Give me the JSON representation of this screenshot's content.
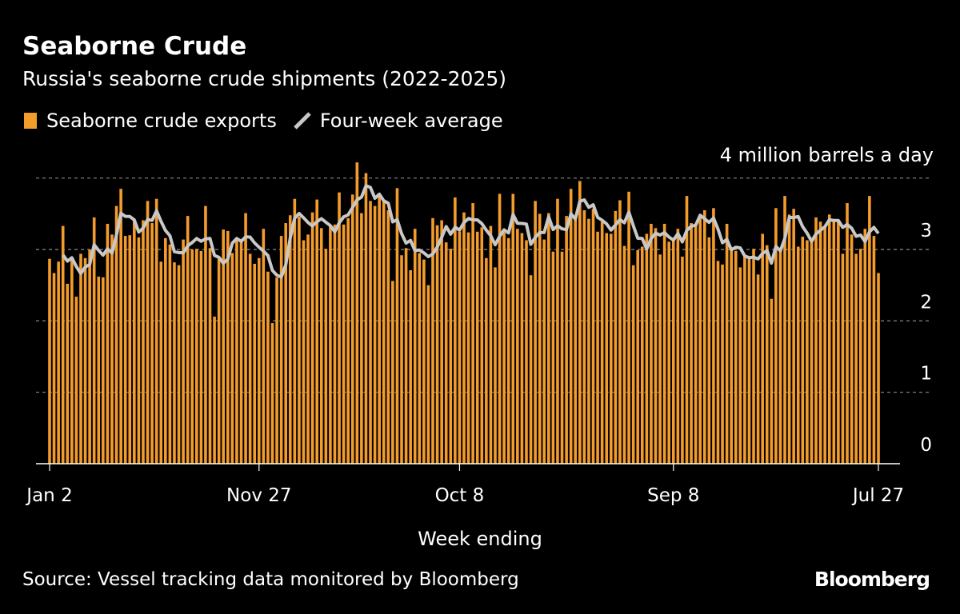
{
  "title": "Seaborne Crude",
  "subtitle": "Russia's seaborne crude shipments (2022-2025)",
  "legend": {
    "bars": "Seaborne crude exports",
    "line": "Four-week average"
  },
  "source": "Source: Vessel tracking data monitored by Bloomberg",
  "logo": "Bloomberg",
  "colors": {
    "bars": "#f39c2c",
    "line": "#c8c8c8",
    "background": "#000000"
  },
  "chart_data": {
    "type": "bar",
    "title": "Seaborne Crude",
    "subtitle": "Russia's seaborne crude shipments (2022-2025)",
    "xlabel": "Week ending",
    "ylabel": "",
    "unit_label": "4 million barrels a day",
    "x_start": "2022-01-02",
    "x_end": "2025-07-27",
    "x_frequency": "weekly",
    "x_tick_labels": [
      "Jan 2",
      "Nov 27",
      "Oct 8",
      "Sep 8",
      "Jul 27"
    ],
    "x_tick_dates": [
      "2022-01-02",
      "2022-11-27",
      "2023-10-08",
      "2024-09-08",
      "2025-07-27"
    ],
    "y_ticks": [
      0,
      1,
      2,
      3,
      4
    ],
    "y_tick_labels": [
      "0",
      "1",
      "2",
      "3"
    ],
    "ylim": [
      0,
      4
    ],
    "grid": true,
    "legend_position": "top-left",
    "series": [
      {
        "name": "Seaborne crude exports",
        "type": "bar",
        "values": [
          2.87,
          2.67,
          2.83,
          3.33,
          2.52,
          2.86,
          2.34,
          2.94,
          2.88,
          3.0,
          3.45,
          2.62,
          2.61,
          3.36,
          3.21,
          3.61,
          3.85,
          3.19,
          3.2,
          3.42,
          3.17,
          3.41,
          3.68,
          3.37,
          3.71,
          2.83,
          3.16,
          3.07,
          2.82,
          2.78,
          3.14,
          3.47,
          3.0,
          3.01,
          2.98,
          3.61,
          3.02,
          2.06,
          2.87,
          3.28,
          3.26,
          2.95,
          3.13,
          3.12,
          3.51,
          2.94,
          2.8,
          2.88,
          3.29,
          2.69,
          1.97,
          2.61,
          3.19,
          3.37,
          3.48,
          3.71,
          3.46,
          3.13,
          3.21,
          3.52,
          3.7,
          3.3,
          3.01,
          3.33,
          3.35,
          3.8,
          3.35,
          3.44,
          3.77,
          4.22,
          3.51,
          4.07,
          3.68,
          3.61,
          3.74,
          3.7,
          3.55,
          2.56,
          3.86,
          2.92,
          3.02,
          2.71,
          3.29,
          2.95,
          2.86,
          2.5,
          3.44,
          3.34,
          3.41,
          3.1,
          3.01,
          3.73,
          3.25,
          3.52,
          3.24,
          3.65,
          3.25,
          3.31,
          2.88,
          3.33,
          2.75,
          3.78,
          3.24,
          3.16,
          3.78,
          3.29,
          3.23,
          3.13,
          2.64,
          3.68,
          3.5,
          3.14,
          3.51,
          2.97,
          3.71,
          2.97,
          3.47,
          3.85,
          3.42,
          3.96,
          3.55,
          3.43,
          3.57,
          3.25,
          3.39,
          3.23,
          3.22,
          3.54,
          3.69,
          3.05,
          3.81,
          2.78,
          2.99,
          3.04,
          3.22,
          3.36,
          3.3,
          2.93,
          3.36,
          3.11,
          3.13,
          3.29,
          2.9,
          3.75,
          3.37,
          3.34,
          3.46,
          3.55,
          3.17,
          3.58,
          2.84,
          2.79,
          3.36,
          3.0,
          2.98,
          2.75,
          2.91,
          2.9,
          3.01,
          2.65,
          3.22,
          3.06,
          2.31,
          3.58,
          2.98,
          3.75,
          3.49,
          3.57,
          3.04,
          3.18,
          3.13,
          3.11,
          3.45,
          3.39,
          3.33,
          3.49,
          3.42,
          3.39,
          2.94,
          3.65,
          3.21,
          2.94,
          3.01,
          3.29,
          3.75,
          3.19,
          2.67
        ]
      },
      {
        "name": "Four-week average",
        "type": "line"
      }
    ]
  }
}
